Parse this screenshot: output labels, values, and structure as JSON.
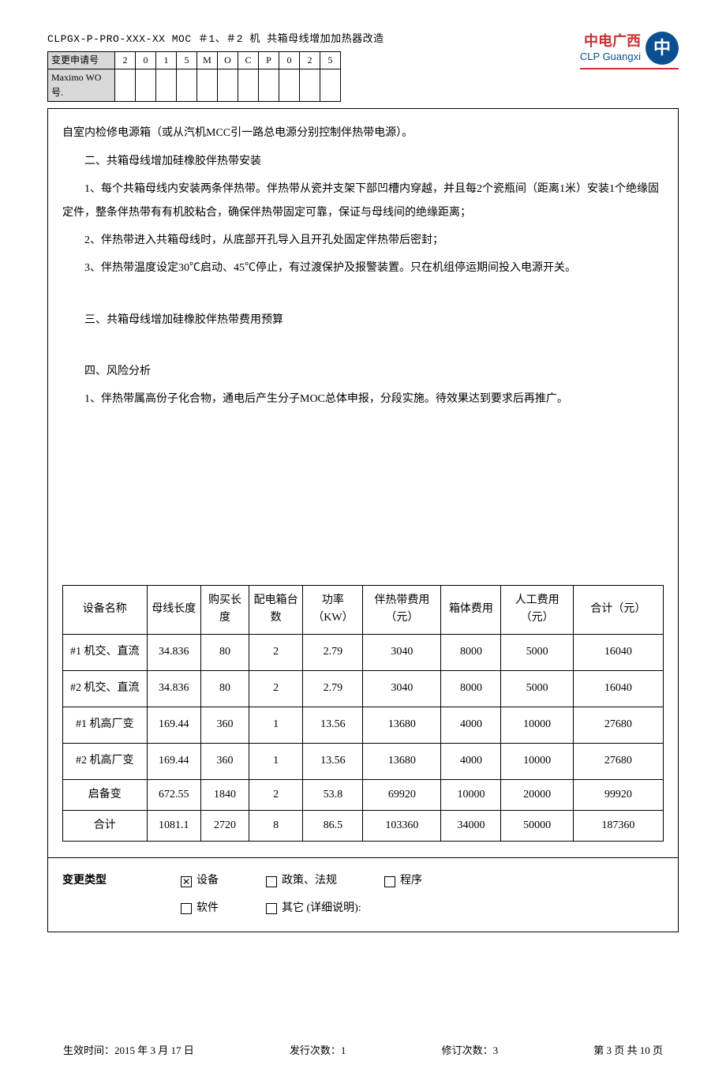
{
  "header": {
    "doc_id": "CLPGX-P-PRO-XXX-XX   MOC   ＃1、＃2 机 共箱母线增加加热器改造",
    "change_req_label": "变更申请号",
    "change_req_cells": [
      "2",
      "0",
      "1",
      "5",
      "M",
      "O",
      "C",
      "P",
      "0",
      "2",
      "5"
    ],
    "maximo_label": "Maximo WO 号.",
    "maximo_cells": [
      "",
      "",
      "",
      "",
      "",
      "",
      "",
      "",
      "",
      "",
      ""
    ],
    "logo_cn": "中电广西",
    "logo_en": "CLP Guangxi",
    "logo_glyph": "中"
  },
  "body": {
    "p0": "自室内检修电源箱（或从汽机MCC引一路总电源分别控制伴热带电源）。",
    "h2": "二、共箱母线增加硅橡胶伴热带安装",
    "p1": "1、每个共箱母线内安装两条伴热带。伴热带从瓷并支架下部凹槽内穿越，并且每2个瓷瓶间（距离1米）安装1个绝缘固定件，整条伴热带有有机胶粘合，确保伴热带固定可靠，保证与母线间的绝缘距离；",
    "p2": "2、伴热带进入共箱母线时，从底部开孔导入且开孔处固定伴热带后密封；",
    "p3": "3、伴热带温度设定30℃启动、45℃停止，有过渡保护及报警装置。只在机组停运期间投入电源开关。",
    "h3": "三、共箱母线增加硅橡胶伴热带费用预算",
    "h4": "四、风险分析",
    "p4": "1、伴热带属高份子化合物，通电后产生分子MOC总体申报，分段实施。待效果达到要求后再推广。"
  },
  "table": {
    "columns": [
      "设备名称",
      "母线长度",
      "购买长度",
      "配电箱台数",
      "功率（KW）",
      "伴热带费用（元）",
      "箱体费用",
      "人工费用（元）",
      "合计（元）"
    ],
    "rows": [
      [
        "#1 机交、直流",
        "34.836",
        "80",
        "2",
        "2.79",
        "3040",
        "8000",
        "5000",
        "16040"
      ],
      [
        "#2 机交、直流",
        "34.836",
        "80",
        "2",
        "2.79",
        "3040",
        "8000",
        "5000",
        "16040"
      ],
      [
        "#1 机高厂变",
        "169.44",
        "360",
        "1",
        "13.56",
        "13680",
        "4000",
        "10000",
        "27680"
      ],
      [
        "#2 机高厂变",
        "169.44",
        "360",
        "1",
        "13.56",
        "13680",
        "4000",
        "10000",
        "27680"
      ],
      [
        "启备变",
        "672.55",
        "1840",
        "2",
        "53.8",
        "69920",
        "10000",
        "20000",
        "99920"
      ],
      [
        "合计",
        "1081.1",
        "2720",
        "8",
        "86.5",
        "103360",
        "34000",
        "50000",
        "187360"
      ]
    ],
    "col_widths": [
      "14%",
      "9%",
      "8%",
      "9%",
      "10%",
      "13%",
      "10%",
      "12%",
      "15%"
    ]
  },
  "change_type": {
    "label": "变更类型",
    "options": [
      {
        "label": "设备",
        "checked": true
      },
      {
        "label": "政策、法规",
        "checked": false
      },
      {
        "label": "程序",
        "checked": false
      },
      {
        "label": "软件",
        "checked": false
      },
      {
        "label": "其它 (详细说明):",
        "checked": false
      }
    ]
  },
  "footer": {
    "eff": "生效时间：2015 年 3 月 17 日",
    "issue": "发行次数：1",
    "rev": "修订次数：3",
    "page": "第 3 页 共 10 页"
  }
}
